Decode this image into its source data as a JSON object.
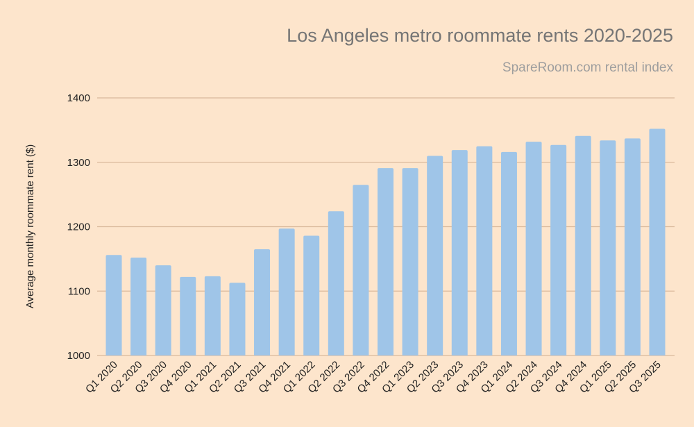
{
  "chart_data": {
    "type": "bar",
    "title": "Los Angeles metro roommate rents 2020-2025",
    "subtitle": "SpareRoom.com rental index",
    "xlabel": "",
    "ylabel": "Average monthly roommate rent ($)",
    "ylim": [
      1000,
      1400
    ],
    "yticks": [
      1000,
      1100,
      1200,
      1300,
      1400
    ],
    "grid": true,
    "categories": [
      "Q1 2020",
      "Q2 2020",
      "Q3 2020",
      "Q4 2020",
      "Q1 2021",
      "Q2 2021",
      "Q3 2021",
      "Q4 2021",
      "Q1 2022",
      "Q2 2022",
      "Q3 2022",
      "Q4 2022",
      "Q1 2023",
      "Q2 2023",
      "Q3 2023",
      "Q4 2023",
      "Q1 2024",
      "Q2 2024",
      "Q3 2024",
      "Q4 2024",
      "Q1 2025",
      "Q2 2025",
      "Q3 2025"
    ],
    "values": [
      1156,
      1152,
      1140,
      1122,
      1123,
      1113,
      1165,
      1197,
      1186,
      1224,
      1265,
      1291,
      1291,
      1310,
      1319,
      1325,
      1316,
      1332,
      1327,
      1341,
      1334,
      1337,
      1352
    ],
    "colors": {
      "background": "#fde5cc",
      "bar": "#9fc5e8",
      "grid": "#d9b99b",
      "title": "#757575"
    }
  }
}
